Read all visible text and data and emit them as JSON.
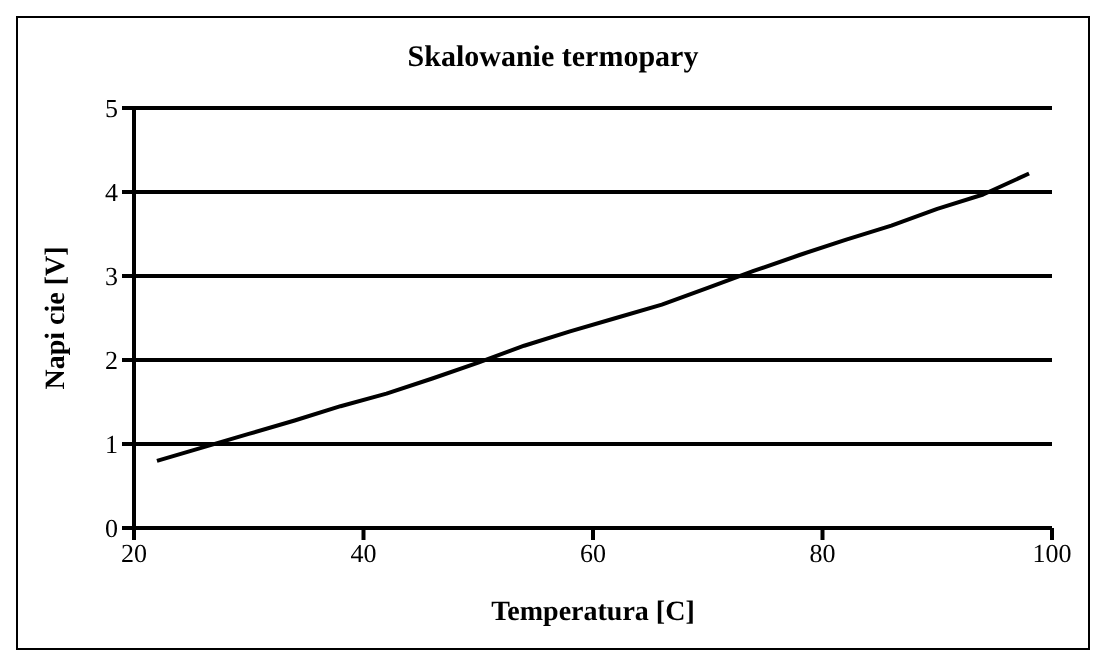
{
  "chart_data": {
    "type": "line",
    "title": "Skalowanie termopary",
    "xlabel": "Temperatura [C]",
    "ylabel": "Napi cie [V]",
    "x": [
      22,
      26,
      30,
      34,
      38,
      42,
      46,
      50,
      54,
      58,
      62,
      66,
      70,
      74,
      78,
      82,
      86,
      90,
      94,
      98
    ],
    "series": [
      {
        "color": "#000000",
        "values": [
          0.8,
          0.96,
          1.12,
          1.28,
          1.45,
          1.6,
          1.78,
          1.97,
          2.17,
          2.34,
          2.5,
          2.66,
          2.86,
          3.06,
          3.25,
          3.43,
          3.6,
          3.8,
          3.97,
          4.22
        ]
      }
    ],
    "xlim": [
      20,
      100
    ],
    "xticks": [
      20,
      40,
      60,
      80,
      100
    ],
    "ylim": [
      0,
      5
    ],
    "yticks": [
      0,
      1,
      2,
      3,
      4,
      5
    ],
    "grid": "y",
    "legend": false,
    "marker": "none",
    "line_style": "solid"
  }
}
